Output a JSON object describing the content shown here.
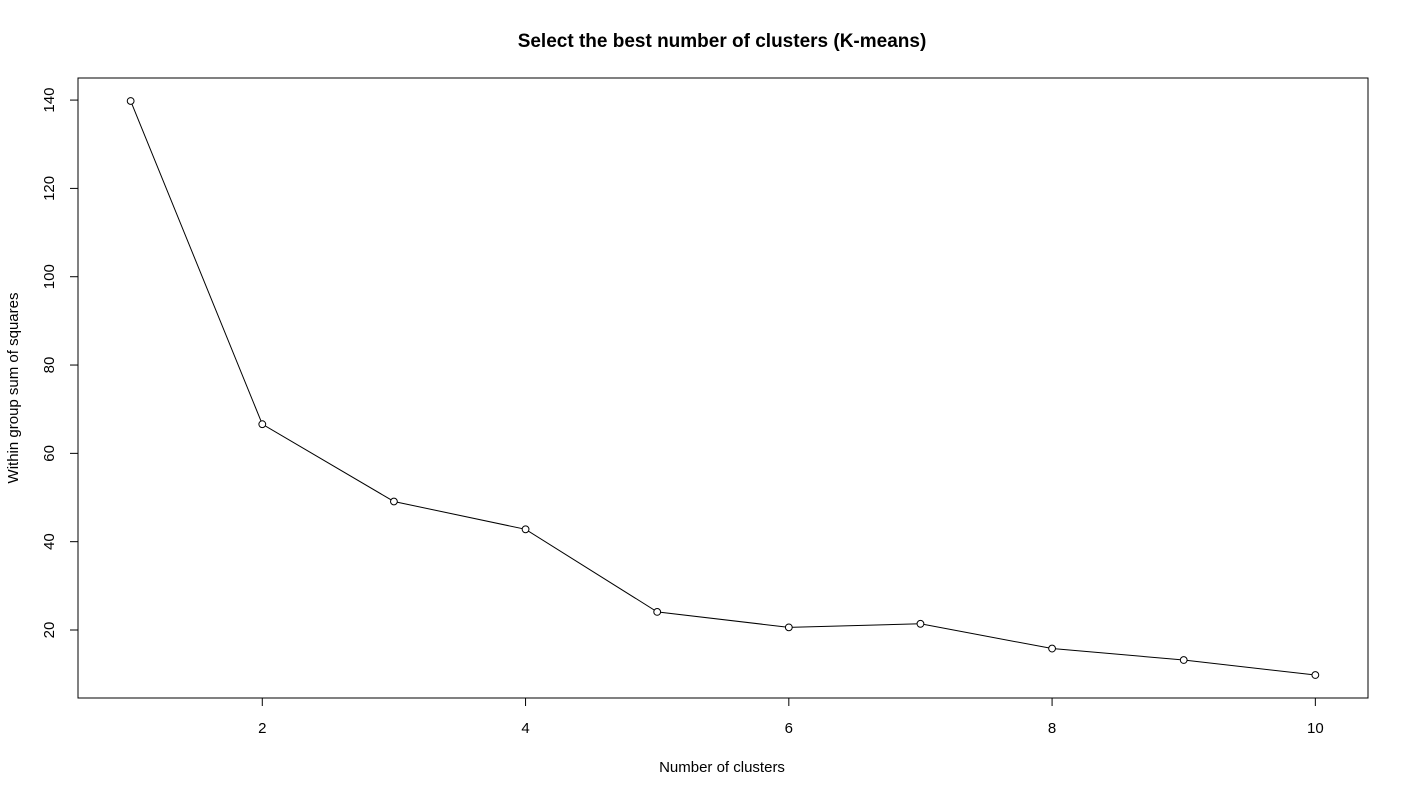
{
  "chart_data": {
    "type": "line",
    "title": "Select the best number of clusters (K-means)",
    "xlabel": "Number of clusters",
    "ylabel": "Within group sum of squares",
    "x": [
      1,
      2,
      3,
      4,
      5,
      6,
      7,
      8,
      9,
      10
    ],
    "series": [
      {
        "values": [
          139.8,
          66.6,
          49.1,
          42.8,
          24.1,
          20.6,
          21.4,
          15.8,
          13.2,
          9.8
        ]
      }
    ],
    "xticks": [
      2,
      4,
      6,
      8,
      10
    ],
    "yticks": [
      20,
      40,
      60,
      80,
      100,
      120,
      140
    ],
    "xlim": [
      0.6,
      10.4
    ],
    "ylim": [
      4.6,
      145.0
    ],
    "grid": false,
    "legend": "none",
    "colors": {
      "line": "#000000",
      "marker_fill": "#ffffff",
      "marker_stroke": "#000000"
    }
  }
}
